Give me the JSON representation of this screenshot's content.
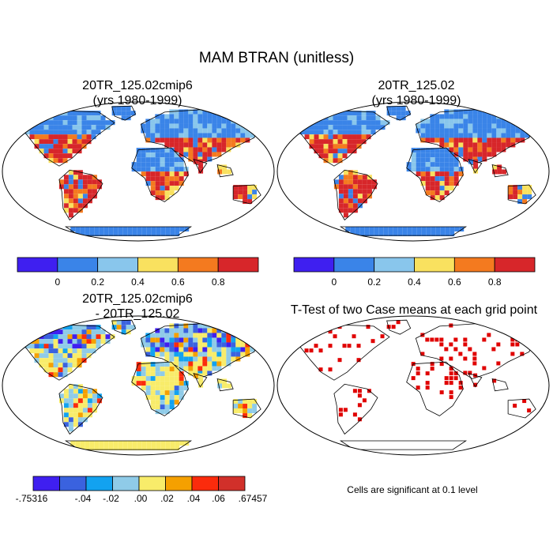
{
  "title": "MAM BTRAN (unitless)",
  "panels": {
    "top_left": {
      "line1": "20TR_125.02cmip6",
      "line2": "(yrs 1980-1999)"
    },
    "top_right": {
      "line1": "20TR_125.02",
      "line2": "(yrs 1980-1999)"
    },
    "bottom_left": {
      "line1": "20TR_125.02cmip6",
      "line2": "- 20TR_125.02"
    },
    "bottom_right": {
      "title": "T-Test of two Case means at each grid point",
      "note": "Cells are significant at 0.1 level"
    }
  },
  "colorbars": {
    "main": {
      "colors": [
        "#3f1ff0",
        "#3a84e8",
        "#89c6ec",
        "#f9e15f",
        "#f47a1f",
        "#d7262a"
      ],
      "labels": [
        "0",
        "0.2",
        "0.4",
        "0.6",
        "0.8"
      ]
    },
    "diff": {
      "colors": [
        "#3f1ff0",
        "#3a62df",
        "#12a2f0",
        "#8fcbe8",
        "#f8ec6a",
        "#f5a000",
        "#fb2b0c",
        "#d1302a"
      ],
      "labels": [
        "-.75316",
        "-.04",
        "-.02",
        ".00",
        ".02",
        ".04",
        ".06",
        ".67457"
      ]
    }
  },
  "significance_color": "#e00000"
}
